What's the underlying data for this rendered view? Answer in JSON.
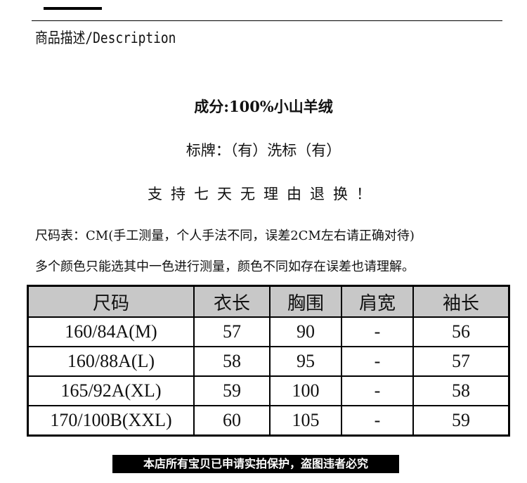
{
  "section_title": "商品描述/Description",
  "composition": "成分:100%小山羊绒",
  "labels": "标牌：（有）洗标（有）",
  "return_policy": "支持七天无理由退换！",
  "note1": "尺码表：CM(手工测量，个人手法不同，误差2CM左右请正确对待)",
  "note2": "多个颜色只能选其中一色进行测量，颜色不同如存在误差也请理解。",
  "table": {
    "headers": [
      "尺码",
      "衣长",
      "胸围",
      "肩宽",
      "袖长"
    ],
    "rows": [
      [
        "160/84A(M)",
        "57",
        "90",
        "-",
        "56"
      ],
      [
        "160/88A(L)",
        "58",
        "95",
        "-",
        "57"
      ],
      [
        "165/92A(XL)",
        "59",
        "100",
        "-",
        "58"
      ],
      [
        "170/100B(XXL)",
        "60",
        "105",
        "-",
        "59"
      ]
    ]
  },
  "footer": "本店所有宝贝已申请实拍保护，盗图违者必究",
  "colors": {
    "header_bg": "#c8c8c8",
    "footer_bg": "#000000"
  }
}
